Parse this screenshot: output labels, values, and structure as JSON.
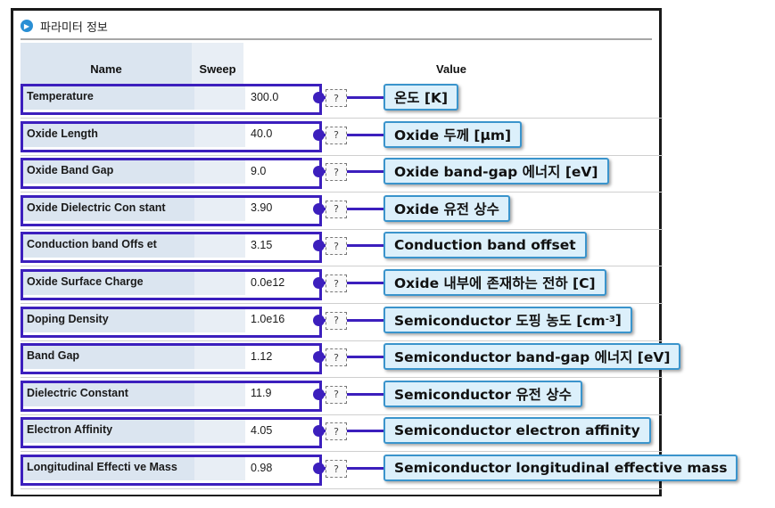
{
  "panel": {
    "title": "파라미터 정보",
    "icon": "info-icon"
  },
  "columns": {
    "name": "Name",
    "sweep": "Sweep",
    "value": "Value"
  },
  "help_button_label": "?",
  "accent_color": "#3c1fbd",
  "callout_bg": "#dcf0fb",
  "rows": [
    {
      "name": "Temperature",
      "value": "300.0",
      "callout": "온도 [K]"
    },
    {
      "name": "Oxide Length",
      "value": "40.0",
      "callout": "Oxide 두께 [μm]"
    },
    {
      "name": "Oxide Band Gap",
      "value": "9.0",
      "callout": "Oxide band-gap 에너지 [eV]"
    },
    {
      "name": "Oxide Dielectric Con stant",
      "value": "3.90",
      "callout": "Oxide 유전 상수"
    },
    {
      "name": "Conduction band Offs et",
      "value": "3.15",
      "callout": "Conduction band offset"
    },
    {
      "name": "Oxide Surface Charge",
      "value": "0.0e12",
      "callout": "Oxide 내부에 존재하는 전하 [C]"
    },
    {
      "name": "Doping Density",
      "value": "1.0e16",
      "callout": "Semiconductor 도핑 농도 [cm-3]"
    },
    {
      "name": "Band Gap",
      "value": "1.12",
      "callout": "Semiconductor band-gap 에너지 [eV]"
    },
    {
      "name": "Dielectric Constant",
      "value": "11.9",
      "callout": "Semiconductor 유전 상수"
    },
    {
      "name": "Electron Affinity",
      "value": "4.05",
      "callout": "Semiconductor electron affinity"
    },
    {
      "name": "Longitudinal Effecti ve Mass",
      "value": "0.98",
      "callout": "Semiconductor longitudinal effective mass"
    }
  ]
}
